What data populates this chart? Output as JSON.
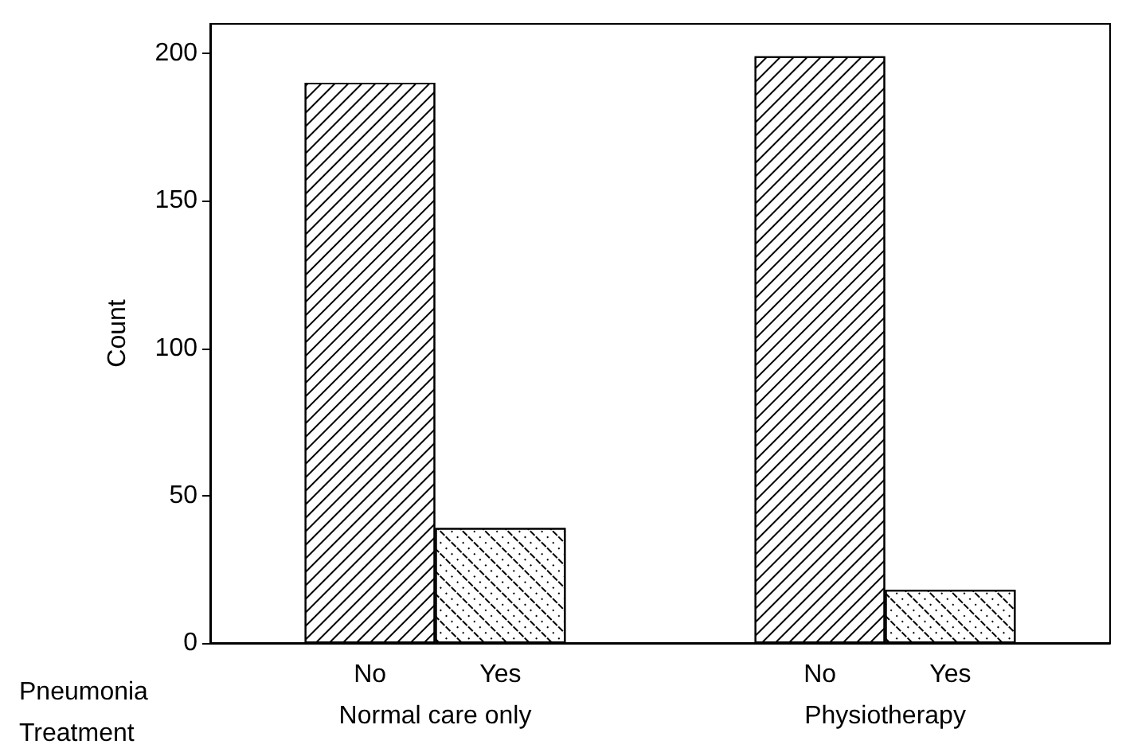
{
  "chart_data": {
    "type": "bar",
    "ylabel": "Count",
    "categories": [
      "Normal care only",
      "Physiotherapy"
    ],
    "series": [
      {
        "name": "No",
        "color": "#ffffff",
        "values": [
          190,
          199
        ]
      },
      {
        "name": "Yes",
        "color": "#ffffff",
        "values": [
          39,
          18
        ]
      }
    ],
    "ylim": [
      0,
      210
    ],
    "yticks": [
      0,
      50,
      100,
      150,
      200
    ],
    "grid": false,
    "legend": false,
    "annotations": [
      "Pneumonia",
      "Treatment"
    ]
  }
}
